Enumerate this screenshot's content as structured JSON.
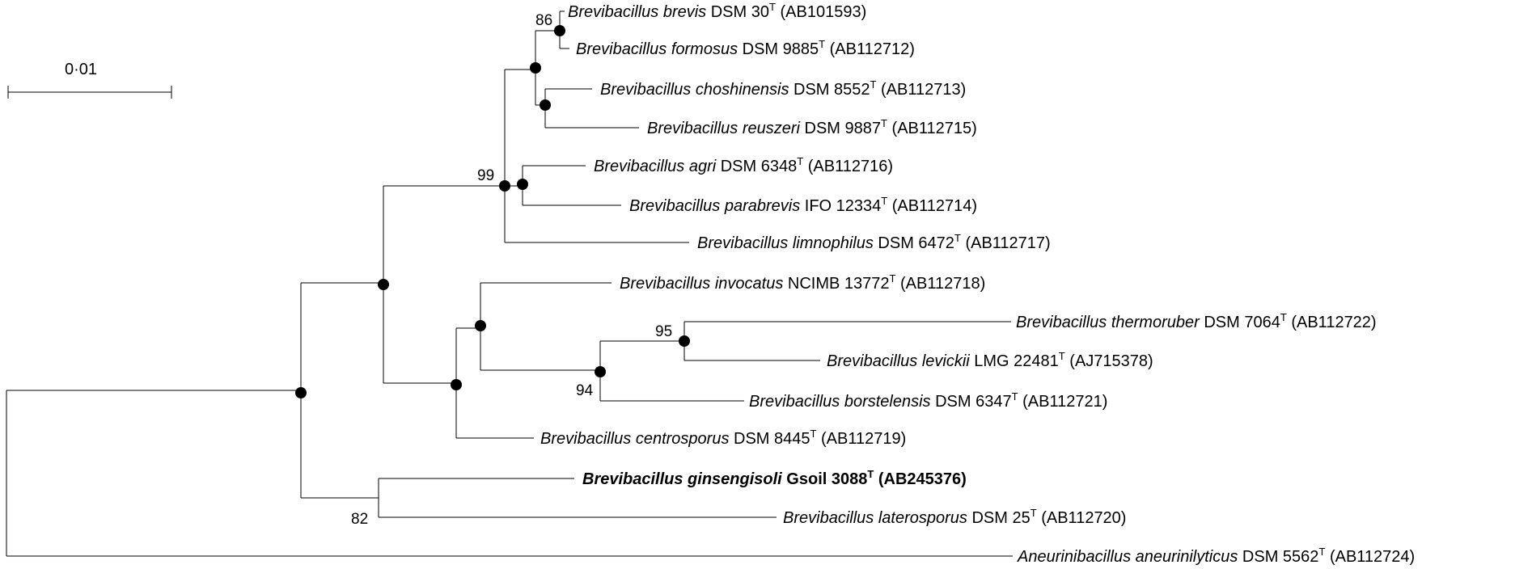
{
  "scale_bar": {
    "label": "0·01"
  },
  "taxa": [
    {
      "id": "t1",
      "genus": "Brevibacillus",
      "species": "brevis",
      "strain": "DSM 30",
      "type_mark": "T",
      "accession": "(AB101593)",
      "bold": false
    },
    {
      "id": "t2",
      "genus": "Brevibacillus",
      "species": "formosus",
      "strain": "DSM 9885",
      "type_mark": "T",
      "accession": "(AB112712)",
      "bold": false
    },
    {
      "id": "t3",
      "genus": "Brevibacillus",
      "species": "choshinensis",
      "strain": "DSM 8552",
      "type_mark": "T",
      "accession": "(AB112713)",
      "bold": false
    },
    {
      "id": "t4",
      "genus": "Brevibacillus",
      "species": "reuszeri",
      "strain": "DSM 9887",
      "type_mark": "T",
      "accession": "(AB112715)",
      "bold": false
    },
    {
      "id": "t5",
      "genus": "Brevibacillus",
      "species": "agri",
      "strain": "DSM 6348",
      "type_mark": "T",
      "accession": "(AB112716)",
      "bold": false
    },
    {
      "id": "t6",
      "genus": "Brevibacillus",
      "species": "parabrevis",
      "strain": "IFO 12334",
      "type_mark": "T",
      "accession": "(AB112714)",
      "bold": false
    },
    {
      "id": "t7",
      "genus": "Brevibacillus",
      "species": "limnophilus",
      "strain": "DSM 6472",
      "type_mark": "T",
      "accession": "(AB112717)",
      "bold": false
    },
    {
      "id": "t8",
      "genus": "Brevibacillus",
      "species": "invocatus",
      "strain": "NCIMB 13772",
      "type_mark": "T",
      "accession": "(AB112718)",
      "bold": false
    },
    {
      "id": "t9",
      "genus": "Brevibacillus",
      "species": "thermoruber",
      "strain": "DSM 7064",
      "type_mark": "T",
      "accession": "(AB112722)",
      "bold": false
    },
    {
      "id": "t10",
      "genus": "Brevibacillus",
      "species": "levickii",
      "strain": "LMG 22481",
      "type_mark": "T",
      "accession": "(AJ715378)",
      "bold": false
    },
    {
      "id": "t11",
      "genus": "Brevibacillus",
      "species": "borstelensis",
      "strain": "DSM 6347",
      "type_mark": "T",
      "accession": "(AB112721)",
      "bold": false
    },
    {
      "id": "t12",
      "genus": "Brevibacillus",
      "species": "centrosporus",
      "strain": "DSM 8445",
      "type_mark": "T",
      "accession": "(AB112719)",
      "bold": false
    },
    {
      "id": "t13",
      "genus": "Brevibacillus",
      "species": "ginsengisoli",
      "strain": "Gsoil 3088",
      "type_mark": "T",
      "accession": "(AB245376)",
      "bold": true
    },
    {
      "id": "t14",
      "genus": "Brevibacillus",
      "species": "laterosporus",
      "strain": "DSM 25",
      "type_mark": "T",
      "accession": "(AB112720)",
      "bold": false
    },
    {
      "id": "t15",
      "genus": "Aneurinibacillus",
      "species": "aneurinilyticus",
      "strain": "DSM 5562",
      "type_mark": "T",
      "accession": "(AB112724)",
      "bold": false
    }
  ],
  "bootstrap_values": {
    "n86": "86",
    "n99": "99",
    "n95": "95",
    "n94": "94",
    "n82": "82"
  }
}
